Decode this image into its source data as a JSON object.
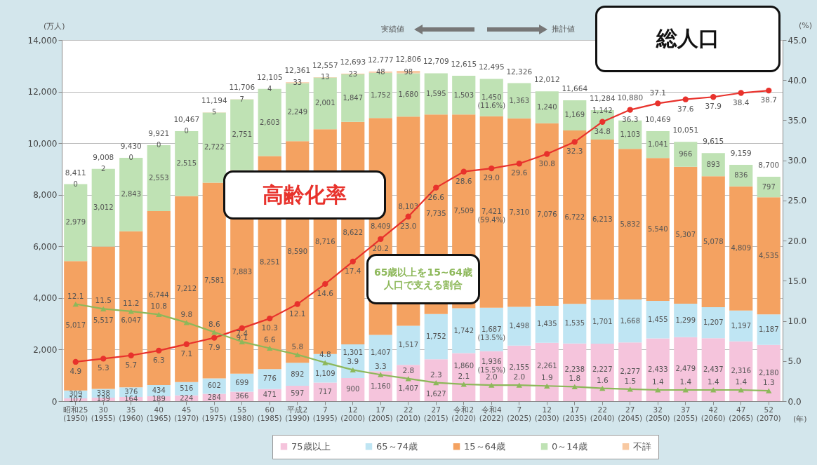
{
  "chart_data": {
    "type": "bar",
    "stacked": true,
    "xlabel": "(年)",
    "ylabel": "(万人)",
    "y2label": "(%)",
    "categories": [
      "昭和25 (1950)",
      "30 (1955)",
      "35 (1960)",
      "40 (1965)",
      "45 (1970)",
      "50 (1975)",
      "55 (1980)",
      "60 (1985)",
      "平成2 (1990)",
      "7 (1995)",
      "12 (2000)",
      "17 (2005)",
      "22 (2010)",
      "27 (2015)",
      "令和2 (2020)",
      "令和4 (2022)",
      "7 (2025)",
      "12 (2030)",
      "17 (2035)",
      "22 (2040)",
      "27 (2045)",
      "32 (2050)",
      "37 (2055)",
      "42 (2060)",
      "47 (2065)",
      "52 (2070)"
    ],
    "series": [
      {
        "name": "75歳以上",
        "color": "#f5c4dc",
        "values": [
          107,
          139,
          164,
          189,
          224,
          284,
          366,
          471,
          597,
          717,
          900,
          1160,
          1407,
          1627,
          1860,
          1936,
          2155,
          2261,
          2238,
          2227,
          2277,
          2433,
          2479,
          2437,
          2316,
          2180
        ],
        "value_labels": [
          "107",
          "139",
          "164",
          "189",
          "224",
          "284",
          "366",
          "471",
          "597",
          "717",
          "900",
          "1,160",
          "1,407",
          "1,627",
          "1,860",
          "1,936 (15.5%)",
          "2,155",
          "2,261",
          "2,238",
          "2,227",
          "2,277",
          "2,433",
          "2,479",
          "2,437",
          "2,316",
          "2,180"
        ]
      },
      {
        "name": "65～74歳",
        "color": "#bfe5f3",
        "values": [
          309,
          338,
          376,
          434,
          516,
          602,
          699,
          776,
          892,
          1109,
          1301,
          1407,
          1517,
          1752,
          1742,
          1687,
          1498,
          1435,
          1535,
          1701,
          1668,
          1455,
          1299,
          1207,
          1197,
          1187
        ],
        "value_labels": [
          "309",
          "338",
          "376",
          "434",
          "516",
          "602",
          "699",
          "776",
          "892",
          "1,109",
          "1,301",
          "1,407",
          "1,517",
          "1,752",
          "1,742",
          "1,687 (13.5%)",
          "1,498",
          "1,435",
          "1,535",
          "1,701",
          "1,668",
          "1,455",
          "1,299",
          "1,207",
          "1,197",
          "1,187"
        ]
      },
      {
        "name": "15～64歳",
        "color": "#f4a261",
        "values": [
          5017,
          5517,
          6047,
          6744,
          7212,
          7581,
          7883,
          8251,
          8590,
          8716,
          8622,
          8409,
          8103,
          7735,
          7509,
          7421,
          7310,
          7076,
          6722,
          6213,
          5832,
          5540,
          5307,
          5078,
          4809,
          4535
        ],
        "value_labels": [
          "5,017",
          "5,517",
          "6,047",
          "6,744",
          "7,212",
          "7,581",
          "7,883",
          "8,251",
          "8,590",
          "8,716",
          "8,622",
          "8,409",
          "8,103",
          "7,735",
          "7,509",
          "7,421 (59.4%)",
          "7,310",
          "7,076",
          "6,722",
          "6,213",
          "5,832",
          "5,540",
          "5,307",
          "5,078",
          "4,809",
          "4,535"
        ]
      },
      {
        "name": "0～14歳",
        "color": "#bfe2b4",
        "values": [
          2979,
          3012,
          2843,
          2553,
          2515,
          2722,
          2751,
          2603,
          2249,
          2001,
          1847,
          1752,
          1680,
          1595,
          1503,
          1450,
          1363,
          1240,
          1169,
          1142,
          1103,
          1041,
          966,
          893,
          836,
          797
        ],
        "value_labels": [
          "2,979",
          "3,012",
          "2,843",
          "2,553",
          "2,515",
          "2,722",
          "2,751",
          "2,603",
          "2,249",
          "2,001",
          "1,847",
          "1,752",
          "1,680",
          "1,595",
          "1,503",
          "1,450 (11.6%)",
          "1,363",
          "1,240",
          "1,169",
          "1,142",
          "1,103",
          "1,041",
          "966",
          "893",
          "836",
          "797"
        ]
      },
      {
        "name": "不詳",
        "color": "#f8c9a2",
        "values": [
          0,
          2,
          0,
          0,
          0,
          5,
          7,
          4,
          33,
          13,
          23,
          48,
          98,
          null,
          null,
          null,
          null,
          null,
          null,
          null,
          null,
          null,
          null,
          null,
          null,
          null
        ],
        "value_labels": [
          "0",
          "2",
          "0",
          "0",
          "0",
          "5",
          "7",
          "4",
          "33",
          "13",
          "23",
          "48",
          "98",
          null,
          null,
          null,
          null,
          null,
          null,
          null,
          null,
          null,
          null,
          null,
          null,
          null
        ]
      },
      {
        "name": "高齢化率",
        "type": "line",
        "axis": "y2",
        "color": "#e8322c",
        "marker": "circle",
        "values": [
          4.9,
          5.3,
          5.7,
          6.3,
          7.1,
          7.9,
          9.1,
          10.3,
          12.1,
          14.6,
          17.4,
          20.2,
          23.0,
          26.6,
          28.6,
          29.0,
          29.6,
          30.8,
          32.3,
          34.8,
          36.3,
          37.1,
          37.6,
          37.9,
          38.4,
          38.7
        ],
        "value_labels": [
          "4.9",
          "5.3",
          "5.7",
          "6.3",
          "7.1",
          "7.9",
          "9.1",
          "10.3",
          "12.1",
          "14.6",
          "17.4",
          "20.2",
          "23.0",
          "26.6",
          "28.6",
          "29.0",
          "29.6",
          "30.8",
          "32.3",
          "34.8",
          "36.3",
          "37.1",
          "37.6",
          "37.9",
          "38.4",
          "38.7"
        ]
      },
      {
        "name": "65歳以上を15~64歳人口で支える割合",
        "type": "line",
        "axis": "y2",
        "color": "#8db85a",
        "marker": "triangle",
        "values": [
          12.1,
          11.5,
          11.2,
          10.8,
          9.8,
          8.6,
          7.4,
          6.6,
          5.8,
          4.8,
          3.9,
          3.3,
          2.8,
          2.3,
          2.1,
          2.0,
          2.0,
          1.9,
          1.8,
          1.6,
          1.5,
          1.4,
          1.4,
          1.4,
          1.4,
          1.3
        ],
        "value_labels": [
          "12.1",
          "11.5",
          "11.2",
          "10.8",
          "9.8",
          "8.6",
          "7.4",
          "6.6",
          "5.8",
          "4.8",
          "3.9",
          "3.3",
          "2.8",
          "2.3",
          "2.1",
          "2.0",
          "2.0",
          "1.9",
          "1.8",
          "1.6",
          "1.5",
          "1.4",
          "1.4",
          "1.4",
          "1.4",
          "1.3"
        ]
      }
    ],
    "totals": [
      "8,411",
      "9,008",
      "9,430",
      "9,921",
      "10,467",
      "11,194",
      "11,706",
      "12,105",
      "12,361",
      "12,557",
      "12,693",
      "12,777",
      "12,806",
      "12,709",
      "12,615",
      "12,495",
      "12,326",
      "12,012",
      "11,664",
      "11,284",
      "10,880",
      "10,469",
      "10,051",
      "9,615",
      "9,159",
      "8,700"
    ],
    "ylim": [
      0,
      14000
    ],
    "yticks": [
      0,
      {
        "value": 2000,
        "label": "2,000"
      },
      {
        "value": 4000,
        "label": "4,000"
      },
      {
        "value": 6000,
        "label": "6,000"
      },
      {
        "value": 8000,
        "label": "8,000"
      },
      {
        "value": 10000,
        "label": "10,000"
      },
      {
        "value": 12000,
        "label": "12,000"
      },
      {
        "value": 14000,
        "label": "14,000"
      }
    ],
    "y2lim": [
      0,
      45
    ],
    "y2ticks": [
      {
        "value": 0,
        "label": "0.0"
      },
      {
        "value": 5,
        "label": "5.0"
      },
      {
        "value": 10,
        "label": "10.0"
      },
      {
        "value": 15,
        "label": "15.0"
      },
      {
        "value": 20,
        "label": "20.0"
      },
      {
        "value": 25,
        "label": "25.0"
      },
      {
        "value": 30,
        "label": "30.0"
      },
      {
        "value": 35,
        "label": "35.0"
      },
      {
        "value": 40,
        "label": "40.0"
      },
      {
        "value": 45,
        "label": "45.0"
      }
    ],
    "grid": "y",
    "legend": "bottom",
    "annotations": [
      "総人口",
      "実績値",
      "推計値"
    ]
  }
}
